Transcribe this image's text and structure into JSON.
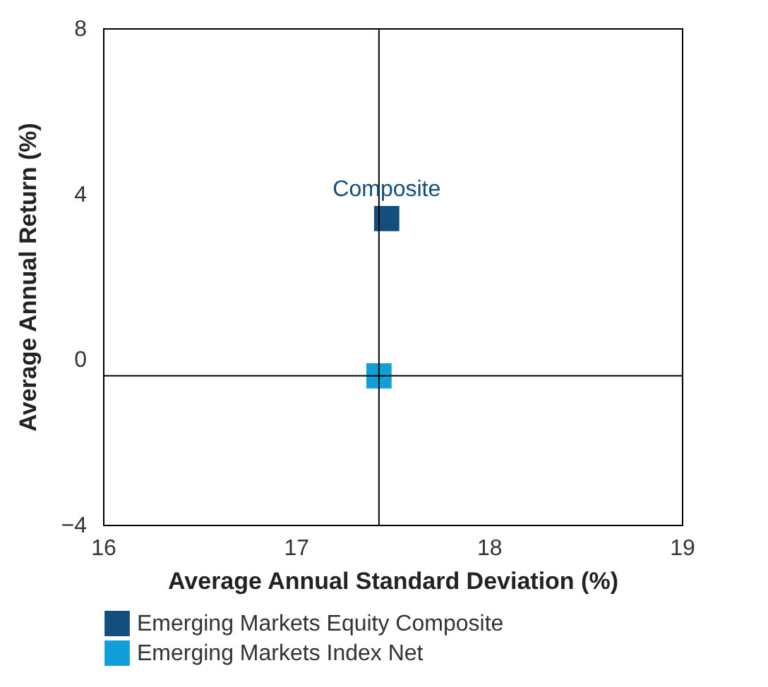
{
  "chart_data": {
    "type": "scatter",
    "xlabel": "Average Annual Standard Deviation (%)",
    "ylabel": "Average Annual Return (%)",
    "xlim": [
      16,
      19
    ],
    "xticks": [
      16,
      17,
      18,
      19
    ],
    "ylim": [
      -4,
      8
    ],
    "yticks": [
      -4,
      0,
      4,
      8
    ],
    "grid": false,
    "legend": "bottom",
    "marker": "square",
    "series": [
      {
        "name": "Emerging Markets Equity Composite",
        "color": "#134f7c",
        "x": [
          17.47
        ],
        "values": [
          3.4
        ]
      },
      {
        "name": "Emerging Markets Index Net",
        "color": "#109fd8",
        "x": [
          17.43
        ],
        "values": [
          -0.4
        ]
      }
    ],
    "ref_lines": [
      {
        "axis": "x",
        "value": 17.43,
        "color": "#000000"
      },
      {
        "axis": "y",
        "value": -0.4,
        "color": "#000000"
      }
    ],
    "annotations": [
      {
        "text": "Composite",
        "x": 17.47,
        "y": 3.4
      }
    ]
  }
}
